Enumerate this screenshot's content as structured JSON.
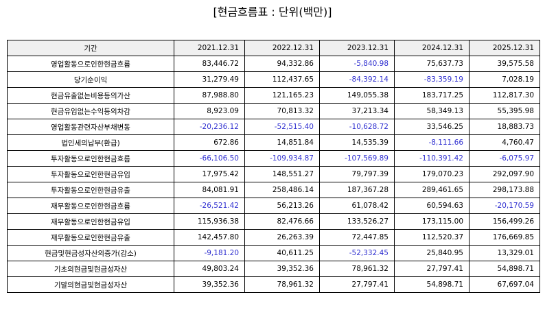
{
  "title": "[현금흐름표 : 단위(백만)]",
  "table": {
    "headers": [
      "기간",
      "2021.12.31",
      "2022.12.31",
      "2023.12.31",
      "2024.12.31",
      "2025.12.31"
    ],
    "negative_color": "#2f2fd0",
    "rows": [
      {
        "label": "영업활동으로인한현금흐름",
        "values": [
          "83,446.72",
          "94,332.86",
          "-5,840.98",
          "75,637.73",
          "39,575.58"
        ]
      },
      {
        "label": "당기순이익",
        "values": [
          "31,279.49",
          "112,437.65",
          "-84,392.14",
          "-83,359.19",
          "7,028.19"
        ]
      },
      {
        "label": "현금유출없는비용등의가산",
        "values": [
          "87,988.80",
          "121,165.23",
          "149,055.38",
          "183,717.25",
          "112,817.30"
        ]
      },
      {
        "label": "현금유입없는수익등의차감",
        "values": [
          "8,923.09",
          "70,813.32",
          "37,213.34",
          "58,349.13",
          "55,395.98"
        ]
      },
      {
        "label": "영업활동관련자산부채변동",
        "values": [
          "-20,236.12",
          "-52,515.40",
          "-10,628.72",
          "33,546.25",
          "18,883.73"
        ]
      },
      {
        "label": "법인세의납부(환급)",
        "values": [
          "672.86",
          "14,851.84",
          "14,535.39",
          "-8,111.66",
          "4,760.47"
        ]
      },
      {
        "label": "투자활동으로인한현금흐름",
        "values": [
          "-66,106.50",
          "-109,934.87",
          "-107,569.89",
          "-110,391.42",
          "-6,075.97"
        ]
      },
      {
        "label": "투자활동으로인한현금유입",
        "values": [
          "17,975.42",
          "148,551.27",
          "79,797.39",
          "179,070.23",
          "292,097.90"
        ]
      },
      {
        "label": "투자활동으로인한현금유출",
        "values": [
          "84,081.91",
          "258,486.14",
          "187,367.28",
          "289,461.65",
          "298,173.88"
        ]
      },
      {
        "label": "재무활동으로인한현금흐름",
        "values": [
          "-26,521.42",
          "56,213.26",
          "61,078.42",
          "60,594.63",
          "-20,170.59"
        ]
      },
      {
        "label": "재무활동으로인한현금유입",
        "values": [
          "115,936.38",
          "82,476.66",
          "133,526.27",
          "173,115.00",
          "156,499.26"
        ]
      },
      {
        "label": "재무활동으로인한현금유출",
        "values": [
          "142,457.80",
          "26,263.39",
          "72,447.85",
          "112,520.37",
          "176,669.85"
        ]
      },
      {
        "label": "현금및현금성자산의증가(감소)",
        "values": [
          "-9,181.20",
          "40,611.25",
          "-52,332.45",
          "25,840.95",
          "13,329.01"
        ]
      },
      {
        "label": "기초의현금및현금성자산",
        "values": [
          "49,803.24",
          "39,352.36",
          "78,961.32",
          "27,797.41",
          "54,898.71"
        ]
      },
      {
        "label": "기말의현금및현금성자산",
        "values": [
          "39,352.36",
          "78,961.32",
          "27,797.41",
          "54,898.71",
          "67,697.04"
        ]
      }
    ]
  }
}
